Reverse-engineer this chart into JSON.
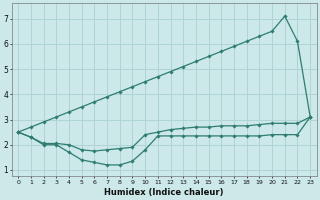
{
  "xlabel": "Humidex (Indice chaleur)",
  "x": [
    0,
    1,
    2,
    3,
    4,
    5,
    6,
    7,
    8,
    9,
    10,
    11,
    12,
    13,
    14,
    15,
    16,
    17,
    18,
    19,
    20,
    21,
    22,
    23
  ],
  "line_min": [
    2.5,
    2.3,
    2.0,
    2.0,
    1.7,
    1.4,
    1.3,
    1.2,
    1.2,
    1.35,
    1.8,
    2.35,
    2.35,
    2.35,
    2.35,
    2.35,
    2.35,
    2.35,
    2.35,
    2.35,
    2.4,
    2.4,
    2.4,
    3.1
  ],
  "line_mean": [
    2.5,
    2.3,
    2.05,
    2.05,
    2.0,
    1.8,
    1.75,
    1.8,
    1.85,
    1.9,
    2.4,
    2.5,
    2.6,
    2.65,
    2.7,
    2.7,
    2.75,
    2.75,
    2.75,
    2.8,
    2.85,
    2.85,
    2.85,
    3.1
  ],
  "line_upper_env": [
    2.5,
    2.7,
    2.9,
    3.1,
    3.3,
    3.5,
    3.7,
    3.9,
    4.1,
    4.3,
    4.5,
    4.7,
    4.9,
    5.1,
    5.3,
    5.5,
    5.7,
    5.9,
    6.1,
    6.3,
    6.5,
    7.1,
    6.1,
    3.1
  ],
  "line_color": "#2e7d6e",
  "bg_color": "#cce8e8",
  "grid_color": "#aed4d4",
  "xlim": [
    -0.5,
    23.5
  ],
  "ylim": [
    0.75,
    7.6
  ],
  "yticks": [
    1,
    2,
    3,
    4,
    5,
    6,
    7
  ],
  "xticks": [
    0,
    1,
    2,
    3,
    4,
    5,
    6,
    7,
    8,
    9,
    10,
    11,
    12,
    13,
    14,
    15,
    16,
    17,
    18,
    19,
    20,
    21,
    22,
    23
  ]
}
